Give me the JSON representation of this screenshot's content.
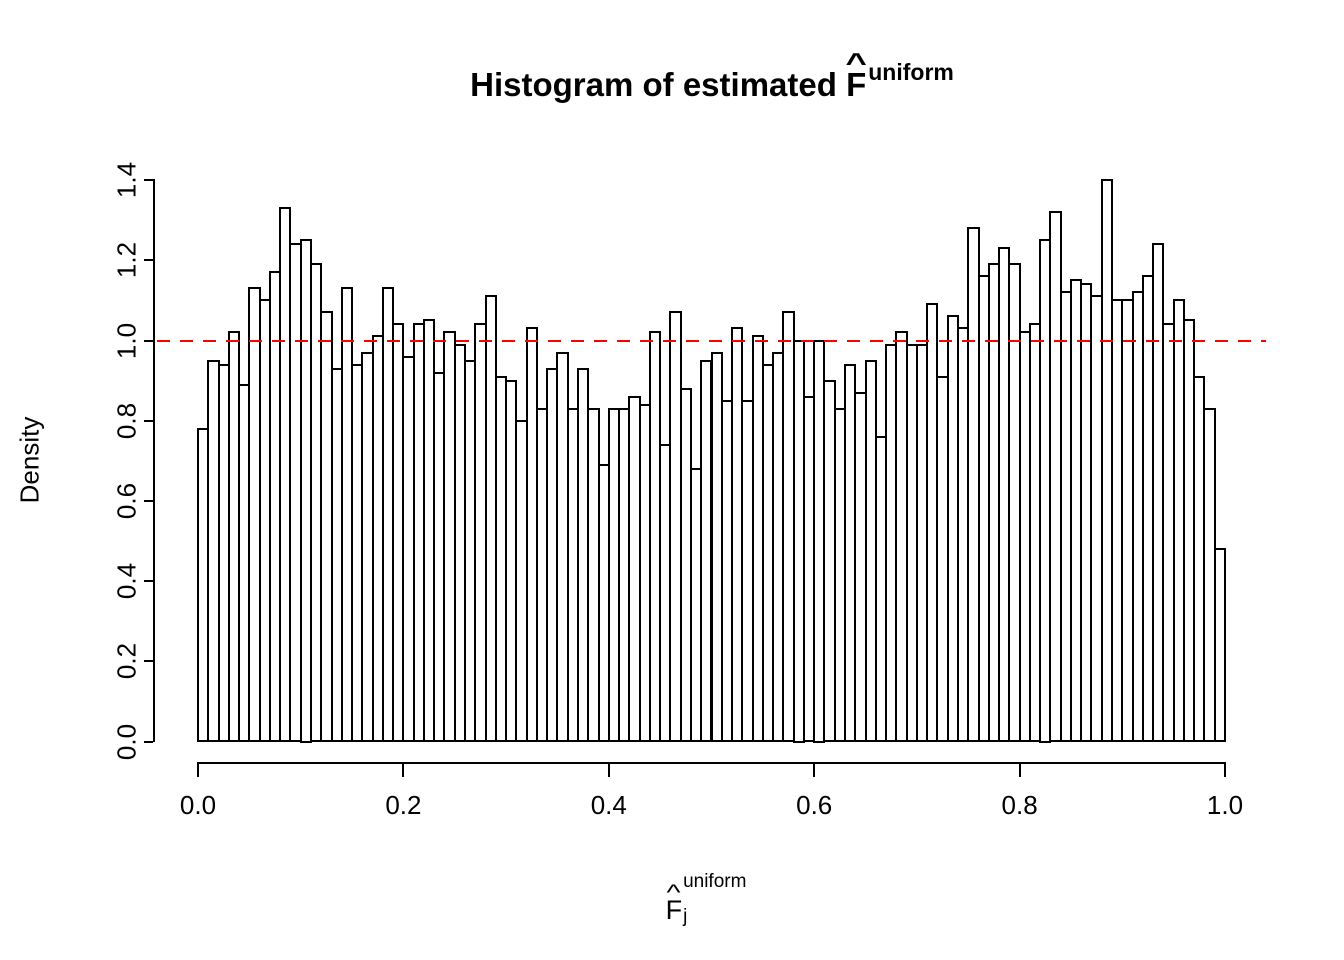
{
  "chart_data": {
    "type": "bar",
    "subtype": "histogram",
    "title": {
      "prefix": "Histogram of estimated ",
      "symbol": "F",
      "hat": "^",
      "superscript": "uniform"
    },
    "xlabel": {
      "symbol": "F",
      "hat": "^",
      "subscript": "j",
      "superscript": "uniform"
    },
    "ylabel": "Density",
    "x_ticks": [
      "0.0",
      "0.2",
      "0.4",
      "0.6",
      "0.8",
      "1.0"
    ],
    "y_ticks": [
      "0.0",
      "0.2",
      "0.4",
      "0.6",
      "0.8",
      "1.0",
      "1.2",
      "1.4"
    ],
    "xlim": [
      0,
      1
    ],
    "ylim": [
      0,
      1.4
    ],
    "bin_width": 0.01,
    "bin_start": 0,
    "values": [
      0.78,
      0.95,
      0.94,
      1.02,
      0.89,
      1.13,
      1.1,
      1.17,
      1.33,
      1.24,
      1.25,
      1.19,
      1.07,
      0.93,
      1.13,
      0.94,
      0.97,
      1.01,
      1.13,
      1.04,
      0.96,
      1.04,
      1.05,
      0.92,
      1.02,
      0.99,
      0.95,
      1.04,
      1.11,
      0.91,
      0.9,
      0.8,
      1.03,
      0.83,
      0.93,
      0.97,
      0.83,
      0.93,
      0.83,
      0.69,
      0.83,
      0.83,
      0.86,
      0.84,
      1.02,
      0.74,
      1.07,
      0.88,
      0.68,
      0.95,
      0.97,
      0.85,
      1.03,
      0.85,
      1.01,
      0.94,
      0.97,
      1.07,
      1.0,
      0.86,
      1.0,
      0.9,
      0.83,
      0.94,
      0.87,
      0.95,
      0.76,
      0.99,
      1.02,
      0.99,
      0.99,
      1.09,
      0.91,
      1.06,
      1.03,
      1.28,
      1.16,
      1.19,
      1.23,
      1.19,
      1.02,
      1.04,
      1.25,
      1.32,
      1.12,
      1.15,
      1.14,
      1.11,
      1.4,
      1.1,
      1.1,
      1.12,
      1.16,
      1.24,
      1.04,
      1.1,
      1.05,
      0.91,
      0.83,
      0.48
    ],
    "reference_line": {
      "y": 1.0,
      "color": "#FF0000",
      "style": "dashed"
    },
    "bar_fill": "#FFFFFF",
    "bar_stroke": "#000000",
    "background": "#FFFFFF",
    "grid": false,
    "legend": false
  }
}
